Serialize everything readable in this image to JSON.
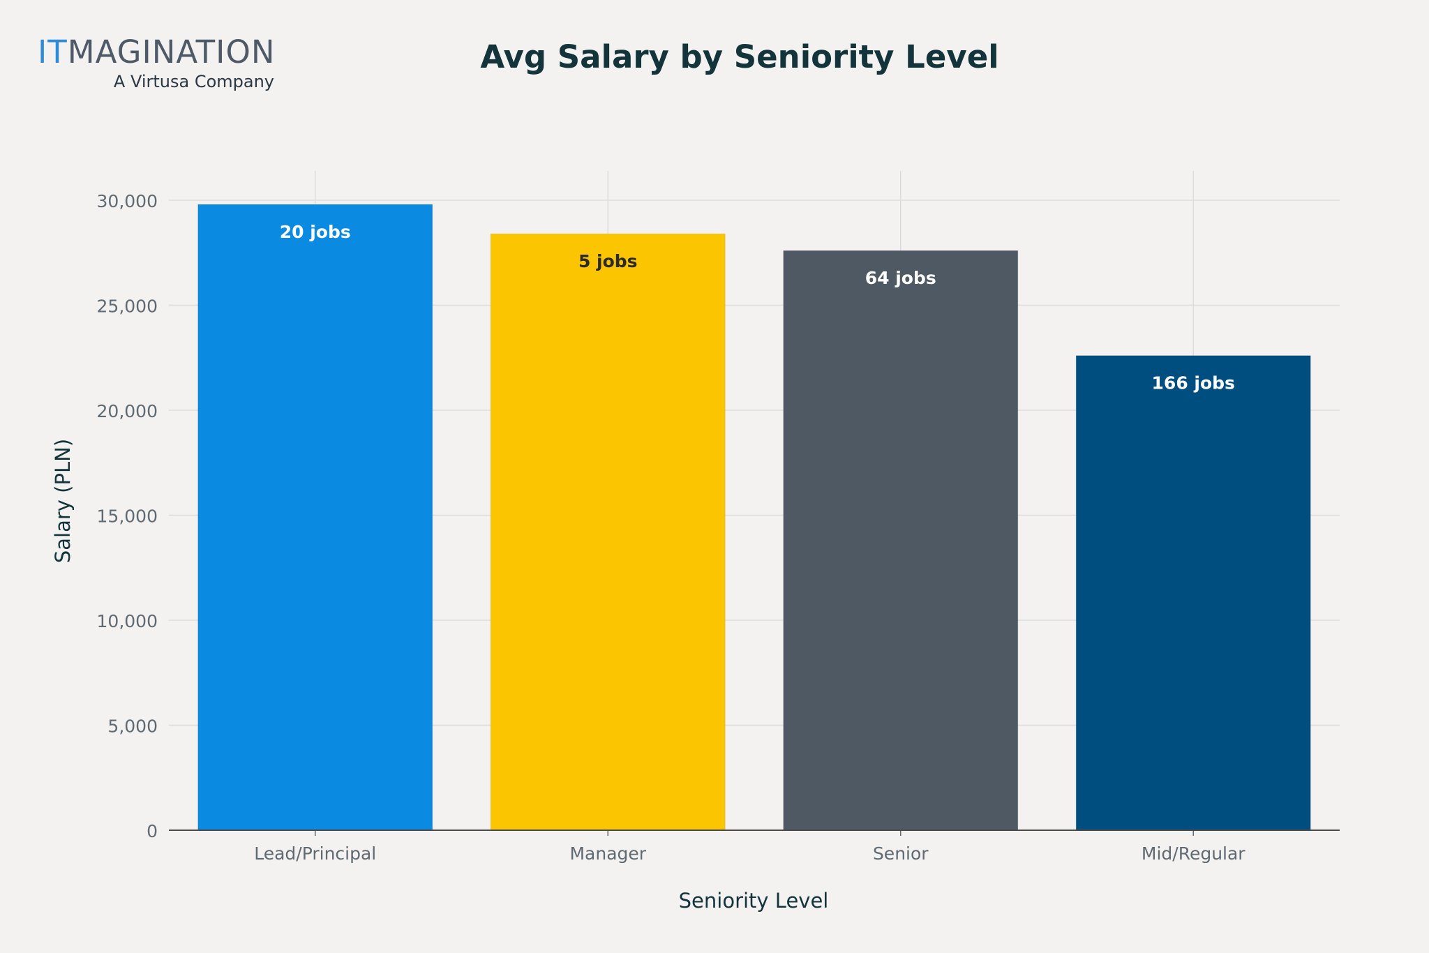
{
  "logo": {
    "main_blue": "IT",
    "main_rest": "MAGINATION",
    "sub": "A Virtusa Company"
  },
  "chart_data": {
    "type": "bar",
    "title": "Avg Salary by Seniority Level",
    "xlabel": "Seniority Level",
    "ylabel": "Salary (PLN)",
    "ylim": [
      0,
      31500
    ],
    "yticks": [
      0,
      5000,
      10000,
      15000,
      20000,
      25000,
      30000
    ],
    "ytick_labels": [
      "0",
      "5,000",
      "10,000",
      "15,000",
      "20,000",
      "25,000",
      "30,000"
    ],
    "categories": [
      "Lead/Principal",
      "Manager",
      "Senior",
      "Mid/Regular"
    ],
    "values": [
      29800,
      28400,
      27600,
      22600
    ],
    "data_labels": [
      "20 jobs",
      "5 jobs",
      "64 jobs",
      "166 jobs"
    ],
    "colors": [
      "#0a8ae0",
      "#fcc502",
      "#4f5963",
      "#004d7f"
    ],
    "label_colors": [
      "#ffffff",
      "#2b2b2b",
      "#ffffff",
      "#ffffff"
    ],
    "grid": true,
    "legend": "none"
  }
}
